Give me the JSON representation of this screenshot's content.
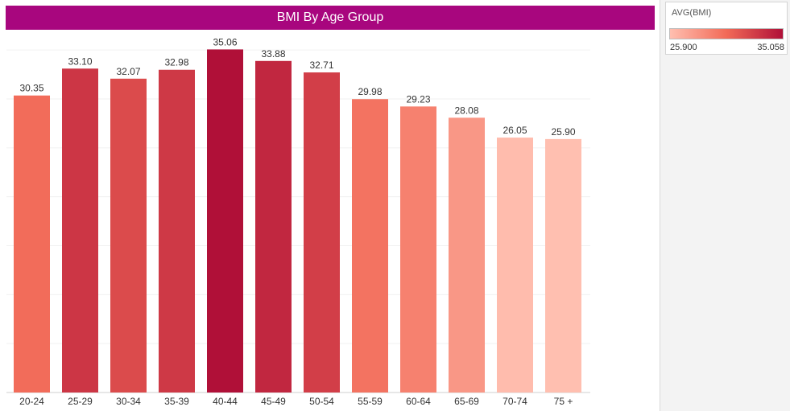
{
  "chart_data": {
    "type": "bar",
    "title": "BMI By Age Group",
    "categories": [
      "20-24",
      "25-29",
      "30-34",
      "35-39",
      "40-44",
      "45-49",
      "50-54",
      "55-59",
      "60-64",
      "65-69",
      "70-74",
      "75 +"
    ],
    "values": [
      30.35,
      33.1,
      32.07,
      32.98,
      35.06,
      33.88,
      32.71,
      29.98,
      29.23,
      28.08,
      26.05,
      25.9
    ],
    "value_labels": [
      "30.35",
      "33.10",
      "32.07",
      "32.98",
      "35.06",
      "33.88",
      "32.71",
      "29.98",
      "29.23",
      "28.08",
      "26.05",
      "25.90"
    ],
    "xlabel": "",
    "ylabel": "",
    "ylim": [
      0,
      36
    ],
    "grid": true,
    "color_measure": "AVG(BMI)",
    "color_scale": {
      "min": 25.9,
      "max": 35.058,
      "low_color": "#ffbfb0",
      "mid_color": "#f26a57",
      "high_color": "#b01038"
    }
  },
  "legend": {
    "title": "AVG(BMI)",
    "min_label": "25.900",
    "max_label": "35.058",
    "placement": "top-right"
  },
  "colors": {
    "title_bar": "#a8067e",
    "title_text": "#ffffff"
  }
}
